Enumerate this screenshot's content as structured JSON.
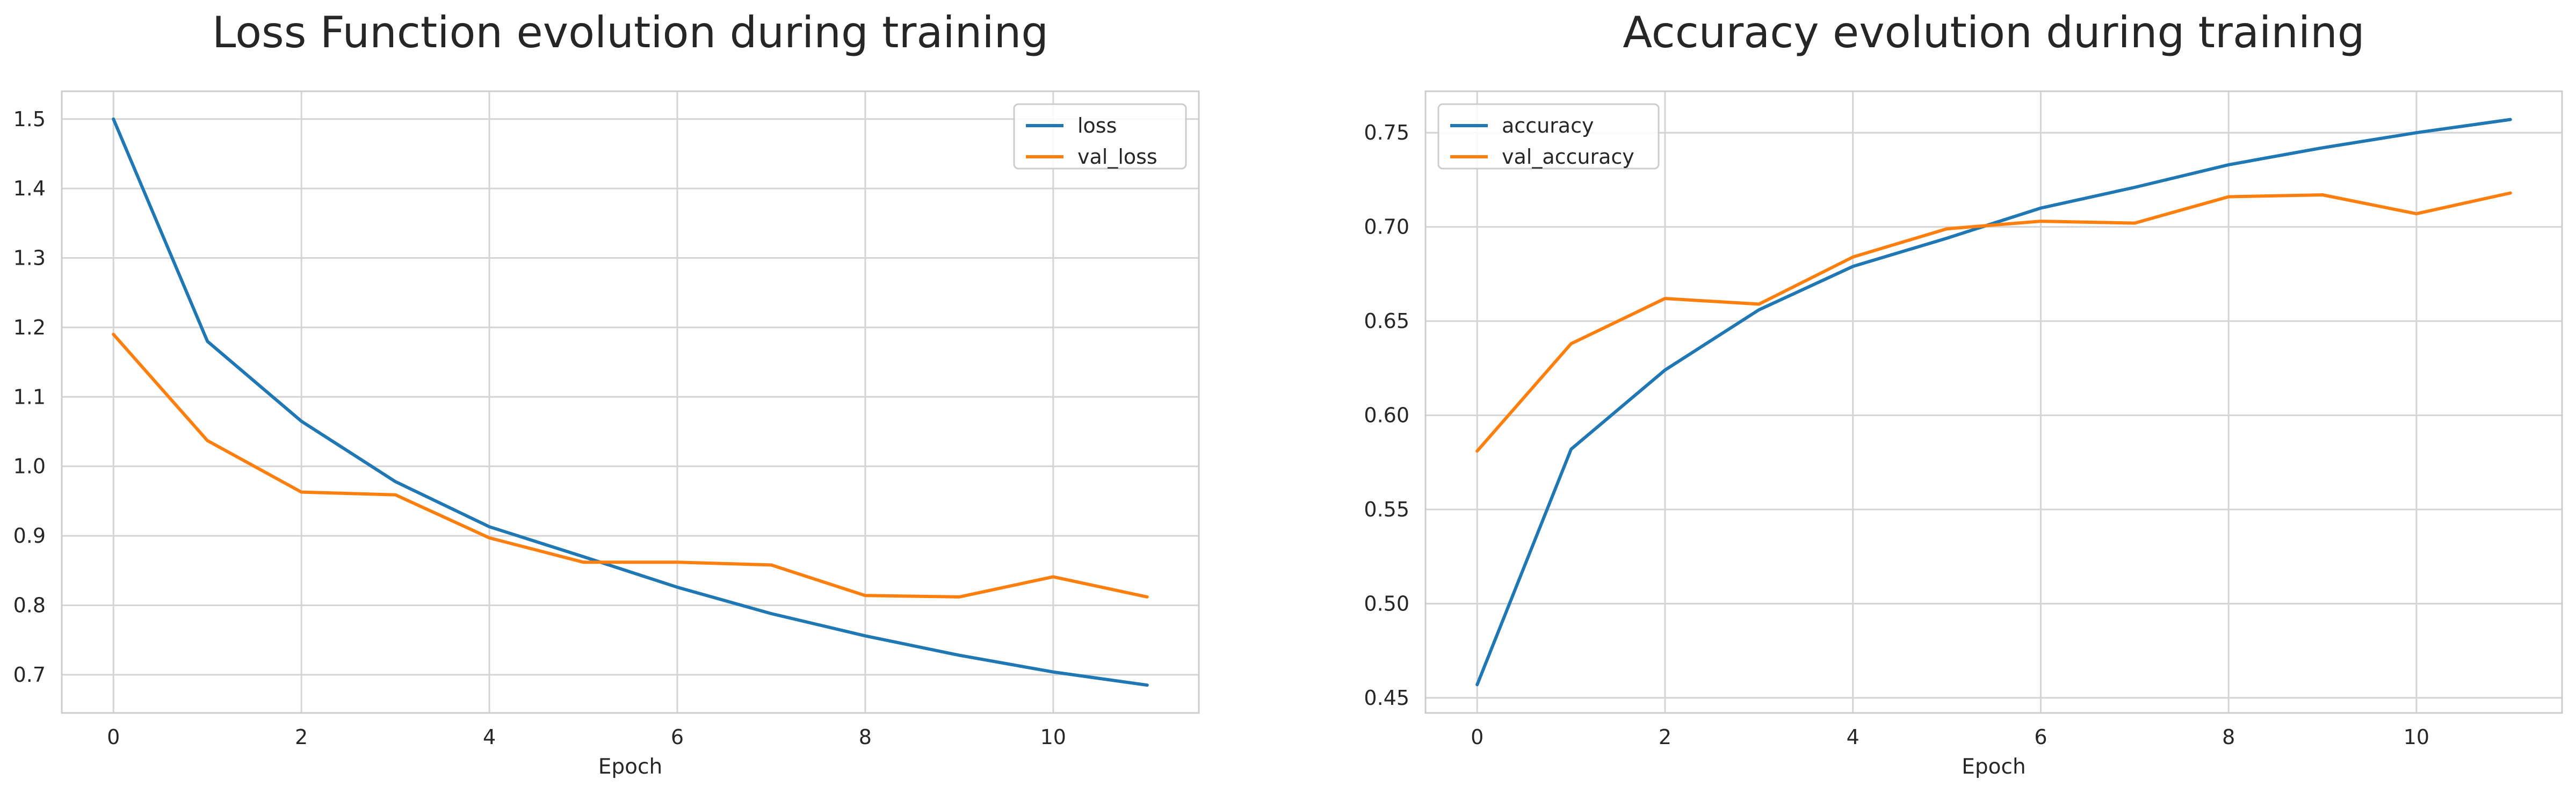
{
  "chart_data": [
    {
      "type": "line",
      "title": "Loss Function evolution during training",
      "xlabel": "Epoch",
      "ylabel": "",
      "x": [
        0,
        1,
        2,
        3,
        4,
        5,
        6,
        7,
        8,
        9,
        10,
        11
      ],
      "xlim": [
        -0.55,
        11.55
      ],
      "ylim": [
        0.645,
        1.54
      ],
      "xticks": [
        0,
        2,
        4,
        6,
        8,
        10
      ],
      "yticks": [
        0.7,
        0.8,
        0.9,
        1.0,
        1.1,
        1.2,
        1.3,
        1.4,
        1.5
      ],
      "ytick_labels": [
        "0.7",
        "0.8",
        "0.9",
        "1.0",
        "1.1",
        "1.2",
        "1.3",
        "1.4",
        "1.5"
      ],
      "grid": true,
      "legend_position": "top-right",
      "series": [
        {
          "name": "loss",
          "color": "#1f77b4",
          "values": [
            1.5,
            1.18,
            1.065,
            0.978,
            0.913,
            0.87,
            0.826,
            0.788,
            0.756,
            0.728,
            0.704,
            0.685
          ]
        },
        {
          "name": "val_loss",
          "color": "#ff7f0e",
          "values": [
            1.19,
            1.037,
            0.963,
            0.959,
            0.897,
            0.862,
            0.862,
            0.858,
            0.814,
            0.812,
            0.841,
            0.812
          ]
        }
      ]
    },
    {
      "type": "line",
      "title": "Accuracy evolution during training",
      "xlabel": "Epoch",
      "ylabel": "",
      "x": [
        0,
        1,
        2,
        3,
        4,
        5,
        6,
        7,
        8,
        9,
        10,
        11
      ],
      "xlim": [
        -0.55,
        11.55
      ],
      "ylim": [
        0.442,
        0.772
      ],
      "xticks": [
        0,
        2,
        4,
        6,
        8,
        10
      ],
      "yticks": [
        0.45,
        0.5,
        0.55,
        0.6,
        0.65,
        0.7,
        0.75
      ],
      "ytick_labels": [
        "0.45",
        "0.50",
        "0.55",
        "0.60",
        "0.65",
        "0.70",
        "0.75"
      ],
      "grid": true,
      "legend_position": "top-left",
      "series": [
        {
          "name": "accuracy",
          "color": "#1f77b4",
          "values": [
            0.457,
            0.582,
            0.624,
            0.656,
            0.679,
            0.694,
            0.71,
            0.721,
            0.733,
            0.742,
            0.75,
            0.757
          ]
        },
        {
          "name": "val_accuracy",
          "color": "#ff7f0e",
          "values": [
            0.581,
            0.638,
            0.662,
            0.659,
            0.684,
            0.699,
            0.703,
            0.702,
            0.716,
            0.717,
            0.707,
            0.718
          ]
        }
      ]
    }
  ]
}
